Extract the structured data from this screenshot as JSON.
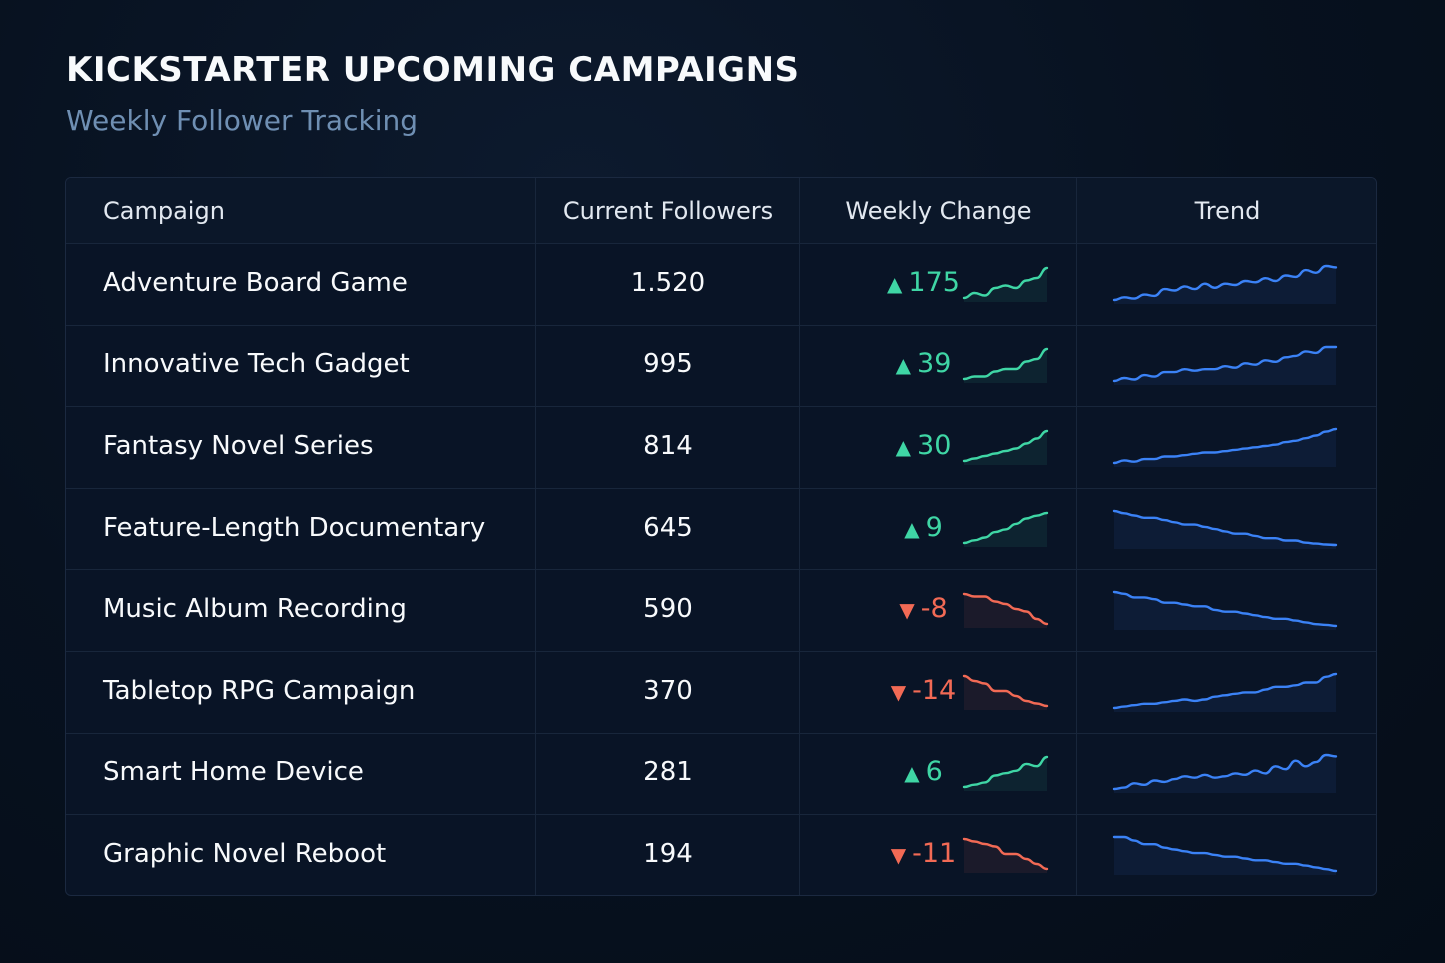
{
  "header": {
    "title": "KICKSTARTER UPCOMING CAMPAIGNS",
    "subtitle": "Weekly Follower Tracking"
  },
  "columns": [
    "Campaign",
    "Current Followers",
    "Weekly Change",
    "Trend"
  ],
  "colors": {
    "up": "#3fd6a5",
    "down": "#f26a55",
    "trend": "#3b82f6"
  },
  "chart_data": {
    "type": "table",
    "rows": [
      {
        "campaign": "Adventure Board Game",
        "followers": "1.520",
        "change": 175,
        "change_label": "175",
        "direction": "up",
        "weekly_spark": [
          2,
          4,
          3,
          6,
          7,
          6,
          9,
          10,
          14
        ],
        "trend_spark": [
          1,
          2,
          1.5,
          3,
          2.5,
          5,
          4.5,
          6,
          5,
          7,
          5.5,
          7,
          6.5,
          8,
          7.5,
          9,
          8,
          10,
          9.5,
          12,
          11,
          13.5,
          13
        ]
      },
      {
        "campaign": "Innovative Tech Gadget",
        "followers": "995",
        "change": 39,
        "change_label": "39",
        "direction": "up",
        "weekly_spark": [
          2,
          3,
          3,
          5,
          6,
          6,
          9,
          10,
          14
        ],
        "trend_spark": [
          1,
          2,
          1.5,
          3,
          2.5,
          4,
          4,
          5,
          4.5,
          5,
          5,
          6,
          5.5,
          7,
          6.5,
          8,
          7.5,
          9,
          9.5,
          11,
          10.5,
          12.5,
          12.5
        ]
      },
      {
        "campaign": "Fantasy Novel Series",
        "followers": "814",
        "change": 30,
        "change_label": "30",
        "direction": "up",
        "weekly_spark": [
          2,
          3,
          4,
          5,
          6,
          7,
          9,
          11,
          14
        ],
        "trend_spark": [
          1,
          2,
          1.5,
          2.5,
          2.5,
          3.5,
          3.5,
          4,
          4.5,
          5,
          5,
          5.5,
          6,
          6.5,
          7,
          7.5,
          8,
          9,
          9.5,
          10.5,
          11.5,
          13,
          14
        ]
      },
      {
        "campaign": "Feature-Length Documentary",
        "followers": "645",
        "change": 9,
        "change_label": "9",
        "direction": "up",
        "weekly_spark": [
          2,
          3,
          4,
          6,
          7,
          9,
          11,
          12,
          13
        ],
        "trend_spark": [
          12,
          11.5,
          11,
          10.5,
          10.5,
          10,
          9.5,
          9,
          9,
          8.5,
          8,
          7.5,
          7,
          7,
          6.5,
          6,
          6,
          5.5,
          5.5,
          5,
          4.8,
          4.6,
          4.5
        ]
      },
      {
        "campaign": "Music Album Recording",
        "followers": "590",
        "change": -8,
        "change_label": "-8",
        "direction": "down",
        "weekly_spark": [
          14,
          13,
          13,
          11,
          10,
          8,
          7,
          4,
          2
        ],
        "trend_spark": [
          13,
          12.5,
          11.5,
          11.5,
          11,
          10,
          10,
          9.5,
          9,
          9,
          8,
          7.5,
          7.5,
          7,
          6.5,
          6,
          5.5,
          5.5,
          5,
          4.5,
          4,
          3.8,
          3.5
        ]
      },
      {
        "campaign": "Tabletop RPG Campaign",
        "followers": "370",
        "change": -14,
        "change_label": "-14",
        "direction": "down",
        "weekly_spark": [
          14,
          12,
          11,
          8,
          8,
          6,
          4,
          3,
          2
        ],
        "trend_spark": [
          1,
          1.5,
          2,
          2.5,
          2.5,
          3,
          3.5,
          4,
          3.5,
          4,
          5,
          5.5,
          6,
          6.5,
          6.5,
          7.5,
          8.5,
          8.5,
          9,
          10,
          10,
          12,
          13
        ]
      },
      {
        "campaign": "Smart Home Device",
        "followers": "281",
        "change": 6,
        "change_label": "6",
        "direction": "up",
        "weekly_spark": [
          1,
          2,
          3,
          6,
          7,
          8,
          11,
          10,
          14
        ],
        "trend_spark": [
          1,
          1.5,
          3,
          2.5,
          4,
          3.5,
          4.5,
          5.5,
          5,
          6,
          5,
          5.5,
          6.5,
          6,
          7.5,
          6.5,
          9,
          8,
          11,
          9,
          10.5,
          13,
          12.5
        ]
      },
      {
        "campaign": "Graphic Novel Reboot",
        "followers": "194",
        "change": -11,
        "change_label": "-11",
        "direction": "down",
        "weekly_spark": [
          14,
          13,
          12,
          11,
          8,
          8,
          6,
          4,
          2
        ],
        "trend_spark": [
          13,
          13,
          12,
          11,
          11,
          10,
          9.5,
          9,
          8.5,
          8.5,
          8,
          7.5,
          7.5,
          7,
          6.5,
          6.5,
          6,
          5.5,
          5.5,
          5,
          4.5,
          4,
          3.5
        ]
      }
    ]
  }
}
